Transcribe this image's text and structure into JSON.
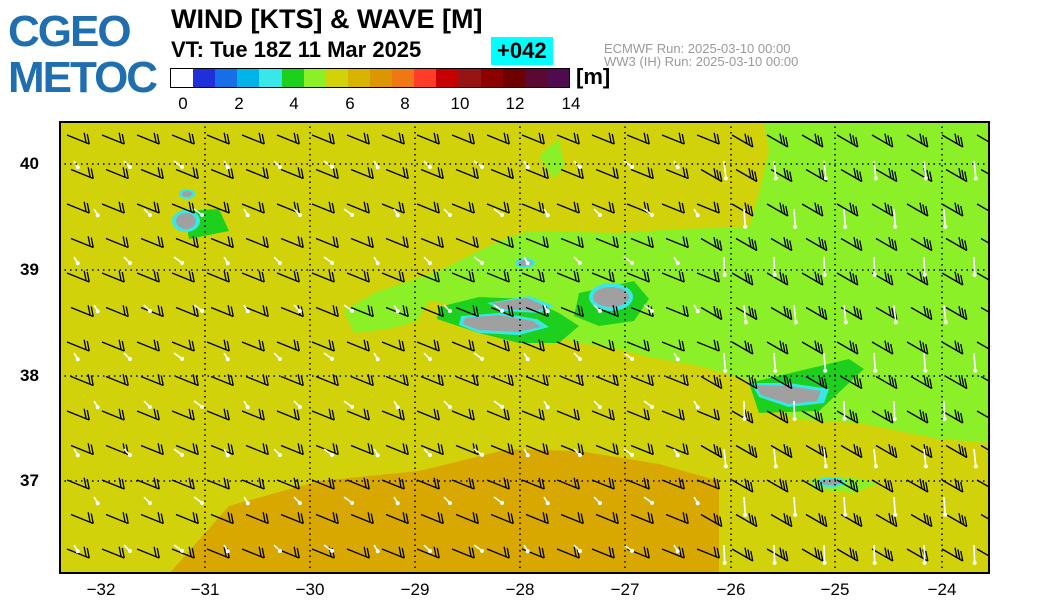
{
  "logo": {
    "line1": "CGEO",
    "line2": "METOC"
  },
  "header": {
    "title": "WIND [KTS] & WAVE [M]",
    "valid_time": "VT:  Tue 18Z 11 Mar 2025",
    "lead_time": "+042",
    "run_atm": "ECMWF     Run: 2025-03-10 00:00",
    "run_wave": "WW3 (IH) Run: 2025-03-10 00:00"
  },
  "colorbar": {
    "unit": "[m]",
    "colors": [
      "#ffffff",
      "#1f30d8",
      "#1570e8",
      "#00b4e8",
      "#38e8e8",
      "#1ed01e",
      "#8cf028",
      "#d2d20a",
      "#d8b400",
      "#dc9600",
      "#f07814",
      "#ff3c28",
      "#c80000",
      "#961414",
      "#8c0000",
      "#6e0000",
      "#5a0a32",
      "#500a50"
    ],
    "tick_labels": [
      "0",
      "2",
      "4",
      "6",
      "8",
      "10",
      "12",
      "14"
    ]
  },
  "map": {
    "x_ticks": [
      "−32",
      "−31",
      "−30",
      "−29",
      "−28",
      "−27",
      "−26",
      "−25",
      "−24"
    ],
    "y_ticks": [
      "40",
      "39",
      "38",
      "37"
    ],
    "islands": [
      "flores-corvo",
      "graciosa",
      "sao-jorge",
      "pico-faial",
      "terceira",
      "sao-miguel",
      "santa-maria"
    ]
  }
}
